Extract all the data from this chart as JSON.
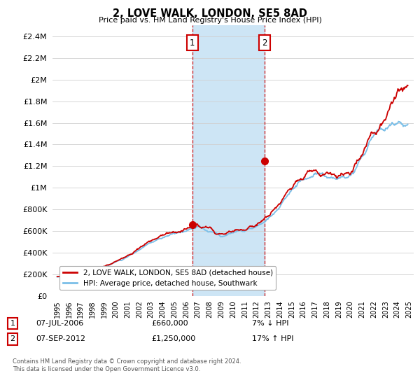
{
  "title": "2, LOVE WALK, LONDON, SE5 8AD",
  "subtitle": "Price paid vs. HM Land Registry's House Price Index (HPI)",
  "legend_line1": "2, LOVE WALK, LONDON, SE5 8AD (detached house)",
  "legend_line2": "HPI: Average price, detached house, Southwark",
  "annotation1_date": "07-JUL-2006",
  "annotation1_price": "£660,000",
  "annotation1_hpi": "7% ↓ HPI",
  "annotation2_date": "07-SEP-2012",
  "annotation2_price": "£1,250,000",
  "annotation2_hpi": "17% ↑ HPI",
  "footer": "Contains HM Land Registry data © Crown copyright and database right 2024.\nThis data is licensed under the Open Government Licence v3.0.",
  "sale1_year": 2006.52,
  "sale1_value": 660000,
  "sale2_year": 2012.67,
  "sale2_value": 1250000,
  "shaded_region": [
    2006.52,
    2012.67
  ],
  "hpi_line_color": "#7bbfe8",
  "price_line_color": "#cc0000",
  "shaded_color": "#cde5f5",
  "sale_marker_color": "#cc0000",
  "ylim": [
    0,
    2500000
  ],
  "xlim_start": 1994.6,
  "xlim_end": 2025.4,
  "background_color": "#ffffff",
  "years_hpi": [
    1995,
    1996,
    1997,
    1998,
    1999,
    2000,
    2001,
    2002,
    2003,
    2004,
    2005,
    2006,
    2007,
    2008,
    2009,
    2010,
    2011,
    2012,
    2013,
    2014,
    2015,
    2016,
    2017,
    2018,
    2019,
    2020,
    2021,
    2022,
    2023,
    2024,
    2024.5
  ],
  "hpi_vals": [
    175000,
    182000,
    200000,
    225000,
    265000,
    310000,
    360000,
    430000,
    490000,
    545000,
    575000,
    600000,
    640000,
    600000,
    560000,
    590000,
    605000,
    640000,
    720000,
    820000,
    980000,
    1080000,
    1120000,
    1100000,
    1080000,
    1110000,
    1280000,
    1480000,
    1560000,
    1590000,
    1590000
  ],
  "prop_vals": [
    180000,
    186000,
    204000,
    232000,
    272000,
    318000,
    368000,
    440000,
    502000,
    558000,
    588000,
    615000,
    655000,
    615000,
    572000,
    600000,
    618000,
    655000,
    738000,
    845000,
    1005000,
    1110000,
    1155000,
    1130000,
    1105000,
    1135000,
    1310000,
    1520000,
    1620000,
    1920000,
    1960000
  ],
  "noise_seed": 17
}
